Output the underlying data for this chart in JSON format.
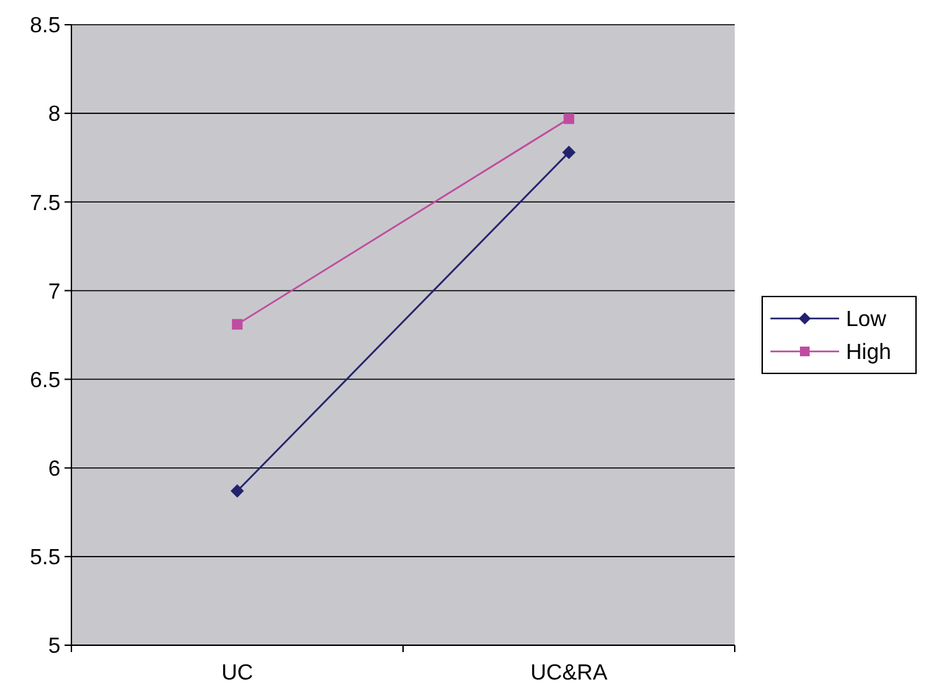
{
  "chart_data": {
    "type": "line",
    "categories": [
      "UC",
      "UC&RA"
    ],
    "series": [
      {
        "name": "Low",
        "color": "#23226e",
        "values": [
          5.87,
          7.78
        ],
        "marker": "diamond"
      },
      {
        "name": "High",
        "color": "#c04ca0",
        "values": [
          6.81,
          7.97
        ],
        "marker": "square"
      }
    ],
    "ylim": [
      5,
      8.5
    ],
    "yticks": [
      5,
      5.5,
      6,
      6.5,
      7,
      7.5,
      8,
      8.5
    ],
    "grid": "y",
    "legend": "right",
    "line_style": "solid"
  }
}
